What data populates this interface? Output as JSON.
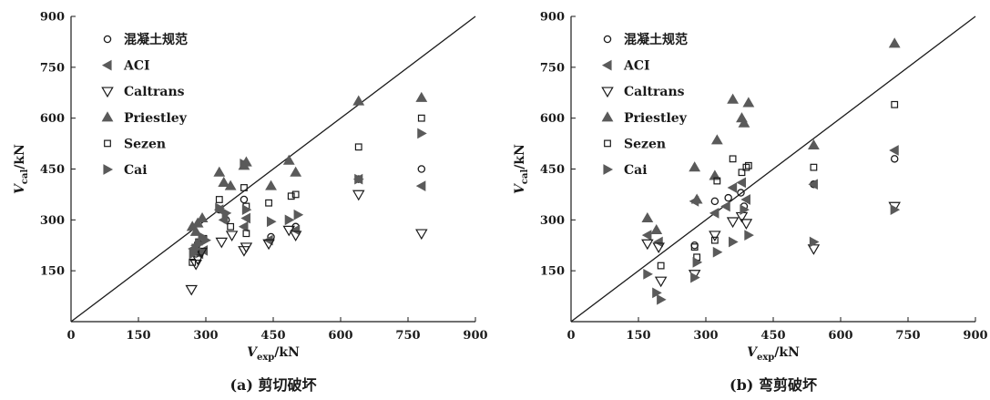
{
  "chart_data": [
    {
      "type": "scatter",
      "caption": "(a) 剪切破坏",
      "xlabel": "V_exp/kN",
      "ylabel": "V_cal/kN",
      "xlim": [
        0,
        900
      ],
      "ylim": [
        0,
        900
      ],
      "xticks": [
        "0",
        "150",
        "300",
        "450",
        "600",
        "750",
        "900"
      ],
      "yticks": [
        "150",
        "300",
        "450",
        "600",
        "750",
        "900"
      ],
      "reference_line": "y = x",
      "legend_position": "top-left",
      "series": [
        {
          "name": "混凝土规范",
          "marker": "circle-open",
          "x": [
            272,
            278,
            282,
            330,
            345,
            385,
            445,
            500,
            640,
            780
          ],
          "y": [
            210,
            200,
            230,
            330,
            300,
            360,
            250,
            280,
            420,
            450
          ]
        },
        {
          "name": "ACI",
          "marker": "triangle-left-filled",
          "x": [
            272,
            278,
            285,
            295,
            330,
            340,
            385,
            390,
            440,
            500,
            640,
            780
          ],
          "y": [
            215,
            225,
            200,
            210,
            330,
            300,
            280,
            305,
            240,
            270,
            420,
            400
          ]
        },
        {
          "name": "Caltrans",
          "marker": "triangle-down-open",
          "x": [
            268,
            278,
            282,
            290,
            335,
            358,
            385,
            390,
            440,
            485,
            500,
            640,
            780
          ],
          "y": [
            95,
            170,
            185,
            205,
            235,
            255,
            210,
            220,
            230,
            270,
            255,
            375,
            260
          ]
        },
        {
          "name": "Priestley",
          "marker": "triangle-up-filled",
          "x": [
            270,
            278,
            282,
            292,
            330,
            340,
            355,
            385,
            390,
            445,
            485,
            500,
            640,
            780
          ],
          "y": [
            280,
            265,
            290,
            305,
            440,
            410,
            400,
            460,
            470,
            400,
            475,
            440,
            650,
            660
          ]
        },
        {
          "name": "Sezen",
          "marker": "square-open",
          "x": [
            270,
            278,
            285,
            295,
            330,
            355,
            385,
            390,
            390,
            440,
            490,
            500,
            640,
            780
          ],
          "y": [
            175,
            210,
            235,
            245,
            360,
            280,
            395,
            340,
            260,
            350,
            370,
            375,
            515,
            600
          ]
        },
        {
          "name": "Cai",
          "marker": "triangle-right-filled",
          "x": [
            272,
            278,
            285,
            292,
            300,
            330,
            345,
            385,
            390,
            445,
            485,
            505,
            640,
            780
          ],
          "y": [
            200,
            215,
            230,
            250,
            240,
            335,
            320,
            465,
            330,
            295,
            300,
            315,
            420,
            555
          ]
        }
      ]
    },
    {
      "type": "scatter",
      "caption": "(b) 弯剪破坏",
      "xlabel": "V_exp/kN",
      "ylabel": "V_cal/kN",
      "xlim": [
        0,
        900
      ],
      "ylim": [
        0,
        900
      ],
      "xticks": [
        "0",
        "150",
        "300",
        "450",
        "600",
        "750",
        "900"
      ],
      "yticks": [
        "150",
        "300",
        "450",
        "600",
        "750",
        "900"
      ],
      "reference_line": "y = x",
      "legend_position": "top-left",
      "series": [
        {
          "name": "混凝土规范",
          "marker": "circle-open",
          "x": [
            275,
            320,
            350,
            378,
            385,
            540,
            720
          ],
          "y": [
            225,
            355,
            365,
            380,
            340,
            405,
            480
          ]
        },
        {
          "name": "ACI",
          "marker": "triangle-left-filled",
          "x": [
            170,
            195,
            275,
            320,
            345,
            360,
            380,
            390,
            540,
            720
          ],
          "y": [
            255,
            235,
            355,
            320,
            340,
            395,
            410,
            360,
            405,
            505
          ]
        },
        {
          "name": "Caltrans",
          "marker": "triangle-down-open",
          "x": [
            170,
            195,
            200,
            275,
            320,
            360,
            380,
            390,
            540,
            720
          ],
          "y": [
            230,
            220,
            120,
            140,
            255,
            295,
            310,
            290,
            215,
            340
          ]
        },
        {
          "name": "Priestley",
          "marker": "triangle-up-filled",
          "x": [
            170,
            190,
            275,
            280,
            320,
            325,
            360,
            380,
            385,
            395,
            540,
            720
          ],
          "y": [
            305,
            270,
            455,
            360,
            430,
            535,
            655,
            600,
            585,
            645,
            520,
            820
          ]
        },
        {
          "name": "Sezen",
          "marker": "square-open",
          "x": [
            200,
            275,
            280,
            320,
            325,
            360,
            380,
            390,
            395,
            540,
            720
          ],
          "y": [
            165,
            220,
            190,
            240,
            415,
            480,
            440,
            455,
            460,
            455,
            640
          ]
        },
        {
          "name": "Cai",
          "marker": "triangle-right-filled",
          "x": [
            170,
            190,
            200,
            275,
            280,
            325,
            360,
            385,
            395,
            540,
            720
          ],
          "y": [
            140,
            85,
            65,
            130,
            175,
            205,
            235,
            330,
            255,
            235,
            330
          ]
        }
      ]
    }
  ]
}
